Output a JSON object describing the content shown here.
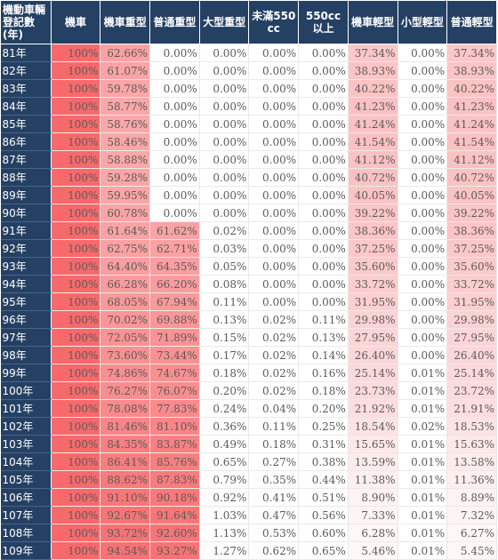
{
  "sheet": {
    "columns": [
      "機動車輛登記數(年)",
      "機車",
      "機車重型",
      "普通重型",
      "大型重型",
      "未滿550cc",
      "550cc以上",
      "機車輕型",
      "小型輕型",
      "普通輕型"
    ],
    "heat_color": "#f8696b",
    "header_color": "#244062",
    "rows": [
      {
        "year": "81年",
        "values": [
          "100%",
          "62.66%",
          "0.00%",
          "0.00%",
          "0.00%",
          "0.00%",
          "37.34%",
          "0.00%",
          "37.34%"
        ]
      },
      {
        "year": "82年",
        "values": [
          "100%",
          "61.07%",
          "0.00%",
          "0.00%",
          "0.00%",
          "0.00%",
          "38.93%",
          "0.00%",
          "38.93%"
        ]
      },
      {
        "year": "83年",
        "values": [
          "100%",
          "59.78%",
          "0.00%",
          "0.00%",
          "0.00%",
          "0.00%",
          "40.22%",
          "0.00%",
          "40.22%"
        ]
      },
      {
        "year": "84年",
        "values": [
          "100%",
          "58.77%",
          "0.00%",
          "0.00%",
          "0.00%",
          "0.00%",
          "41.23%",
          "0.00%",
          "41.23%"
        ]
      },
      {
        "year": "85年",
        "values": [
          "100%",
          "58.76%",
          "0.00%",
          "0.00%",
          "0.00%",
          "0.00%",
          "41.24%",
          "0.00%",
          "41.24%"
        ]
      },
      {
        "year": "86年",
        "values": [
          "100%",
          "58.46%",
          "0.00%",
          "0.00%",
          "0.00%",
          "0.00%",
          "41.54%",
          "0.00%",
          "41.54%"
        ]
      },
      {
        "year": "87年",
        "values": [
          "100%",
          "58.88%",
          "0.00%",
          "0.00%",
          "0.00%",
          "0.00%",
          "41.12%",
          "0.00%",
          "41.12%"
        ]
      },
      {
        "year": "88年",
        "values": [
          "100%",
          "59.28%",
          "0.00%",
          "0.00%",
          "0.00%",
          "0.00%",
          "40.72%",
          "0.00%",
          "40.72%"
        ]
      },
      {
        "year": "89年",
        "values": [
          "100%",
          "59.95%",
          "0.00%",
          "0.00%",
          "0.00%",
          "0.00%",
          "40.05%",
          "0.00%",
          "40.05%"
        ]
      },
      {
        "year": "90年",
        "values": [
          "100%",
          "60.78%",
          "0.00%",
          "0.00%",
          "0.00%",
          "0.00%",
          "39.22%",
          "0.00%",
          "39.22%"
        ]
      },
      {
        "year": "91年",
        "values": [
          "100%",
          "61.64%",
          "61.62%",
          "0.02%",
          "0.00%",
          "0.00%",
          "38.36%",
          "0.00%",
          "38.36%"
        ]
      },
      {
        "year": "92年",
        "values": [
          "100%",
          "62.75%",
          "62.71%",
          "0.03%",
          "0.00%",
          "0.00%",
          "37.25%",
          "0.00%",
          "37.25%"
        ]
      },
      {
        "year": "93年",
        "values": [
          "100%",
          "64.40%",
          "64.35%",
          "0.05%",
          "0.00%",
          "0.00%",
          "35.60%",
          "0.00%",
          "35.60%"
        ]
      },
      {
        "year": "94年",
        "values": [
          "100%",
          "66.28%",
          "66.20%",
          "0.08%",
          "0.00%",
          "0.00%",
          "33.72%",
          "0.00%",
          "33.72%"
        ]
      },
      {
        "year": "95年",
        "values": [
          "100%",
          "68.05%",
          "67.94%",
          "0.11%",
          "0.00%",
          "0.00%",
          "31.95%",
          "0.00%",
          "31.95%"
        ]
      },
      {
        "year": "96年",
        "values": [
          "100%",
          "70.02%",
          "69.88%",
          "0.13%",
          "0.02%",
          "0.11%",
          "29.98%",
          "0.00%",
          "29.98%"
        ]
      },
      {
        "year": "97年",
        "values": [
          "100%",
          "72.05%",
          "71.89%",
          "0.15%",
          "0.02%",
          "0.13%",
          "27.95%",
          "0.00%",
          "27.95%"
        ]
      },
      {
        "year": "98年",
        "values": [
          "100%",
          "73.60%",
          "73.44%",
          "0.17%",
          "0.02%",
          "0.14%",
          "26.40%",
          "0.00%",
          "26.40%"
        ]
      },
      {
        "year": "99年",
        "values": [
          "100%",
          "74.86%",
          "74.67%",
          "0.18%",
          "0.02%",
          "0.16%",
          "25.14%",
          "0.01%",
          "25.14%"
        ]
      },
      {
        "year": "100年",
        "values": [
          "100%",
          "76.27%",
          "76.07%",
          "0.20%",
          "0.02%",
          "0.18%",
          "23.73%",
          "0.01%",
          "23.72%"
        ]
      },
      {
        "year": "101年",
        "values": [
          "100%",
          "78.08%",
          "77.83%",
          "0.24%",
          "0.04%",
          "0.20%",
          "21.92%",
          "0.01%",
          "21.91%"
        ]
      },
      {
        "year": "102年",
        "values": [
          "100%",
          "81.46%",
          "81.10%",
          "0.36%",
          "0.11%",
          "0.25%",
          "18.54%",
          "0.02%",
          "18.53%"
        ]
      },
      {
        "year": "103年",
        "values": [
          "100%",
          "84.35%",
          "83.87%",
          "0.49%",
          "0.18%",
          "0.31%",
          "15.65%",
          "0.01%",
          "15.63%"
        ]
      },
      {
        "year": "104年",
        "values": [
          "100%",
          "86.41%",
          "85.76%",
          "0.65%",
          "0.27%",
          "0.38%",
          "13.59%",
          "0.01%",
          "13.58%"
        ]
      },
      {
        "year": "105年",
        "values": [
          "100%",
          "88.62%",
          "87.83%",
          "0.79%",
          "0.35%",
          "0.44%",
          "11.38%",
          "0.01%",
          "11.36%"
        ]
      },
      {
        "year": "106年",
        "values": [
          "100%",
          "91.10%",
          "90.18%",
          "0.92%",
          "0.41%",
          "0.51%",
          "8.90%",
          "0.01%",
          "8.89%"
        ]
      },
      {
        "year": "107年",
        "values": [
          "100%",
          "92.67%",
          "91.64%",
          "1.03%",
          "0.47%",
          "0.56%",
          "7.33%",
          "0.01%",
          "7.32%"
        ]
      },
      {
        "year": "108年",
        "values": [
          "100%",
          "93.72%",
          "92.60%",
          "1.13%",
          "0.53%",
          "0.60%",
          "6.28%",
          "0.01%",
          "6.27%"
        ]
      },
      {
        "year": "109年",
        "values": [
          "100%",
          "94.54%",
          "93.27%",
          "1.27%",
          "0.62%",
          "0.65%",
          "5.46%",
          "0.01%",
          "5.45%"
        ]
      }
    ]
  }
}
